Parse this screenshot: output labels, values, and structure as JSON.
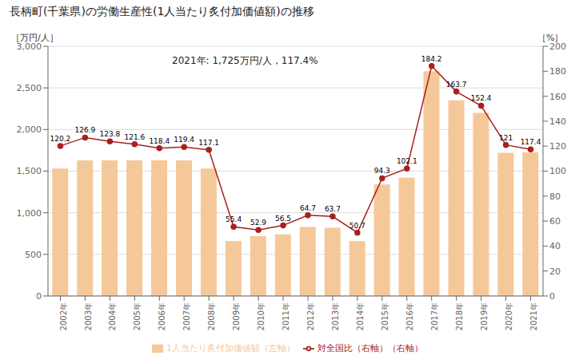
{
  "chart_data": {
    "type": "bar",
    "title": "長柄町(千葉県)の労働生産性(1人当たり炙付加価値額)の推移",
    "annotation": "2021年: 1,725万円/人，117.4%",
    "ylabel": "［万円/人］",
    "y2label": "［%］",
    "categories": [
      "2002年",
      "2003年",
      "2004年",
      "2005年",
      "2006年",
      "2007年",
      "2008年",
      "2009年",
      "2010年",
      "2011年",
      "2012年",
      "2013年",
      "2014年",
      "2015年",
      "2016年",
      "2017年",
      "2018年",
      "2019年",
      "2020年",
      "2021年"
    ],
    "series": [
      {
        "name": "1人当たり炙付加価値額（左軸）",
        "type": "bar",
        "color": "#F5C89A",
        "values": [
          1530,
          1630,
          1630,
          1630,
          1630,
          1630,
          1530,
          660,
          720,
          740,
          830,
          820,
          660,
          1340,
          1420,
          2700,
          2350,
          2200,
          1720,
          1725
        ]
      },
      {
        "name": "対全国比（右軸）（右軸）",
        "type": "line",
        "axis": "y2",
        "color": "#A82020",
        "marker": "circle",
        "data_labels": true,
        "values": [
          120.2,
          126.9,
          123.8,
          121.6,
          118.4,
          119.4,
          117.1,
          55.4,
          52.9,
          56.5,
          64.7,
          63.7,
          50.7,
          94.3,
          102.1,
          184.2,
          163.7,
          152.4,
          121.0,
          117.4
        ]
      }
    ],
    "ylim": [
      0,
      3000
    ],
    "yticks": [
      0,
      500,
      {
        "value": 1000,
        "label": "1,000"
      },
      {
        "value": 1500,
        "label": "1,500"
      },
      {
        "value": 2000,
        "label": "2,000"
      },
      {
        "value": 2500,
        "label": "2,500"
      },
      {
        "value": 3000,
        "label": "3,000"
      }
    ],
    "y2lim": [
      0,
      200
    ],
    "y2ticks": [
      0,
      20,
      40,
      60,
      80,
      100,
      120,
      140,
      160,
      180,
      200
    ],
    "grid": true,
    "legend": "bottom"
  }
}
